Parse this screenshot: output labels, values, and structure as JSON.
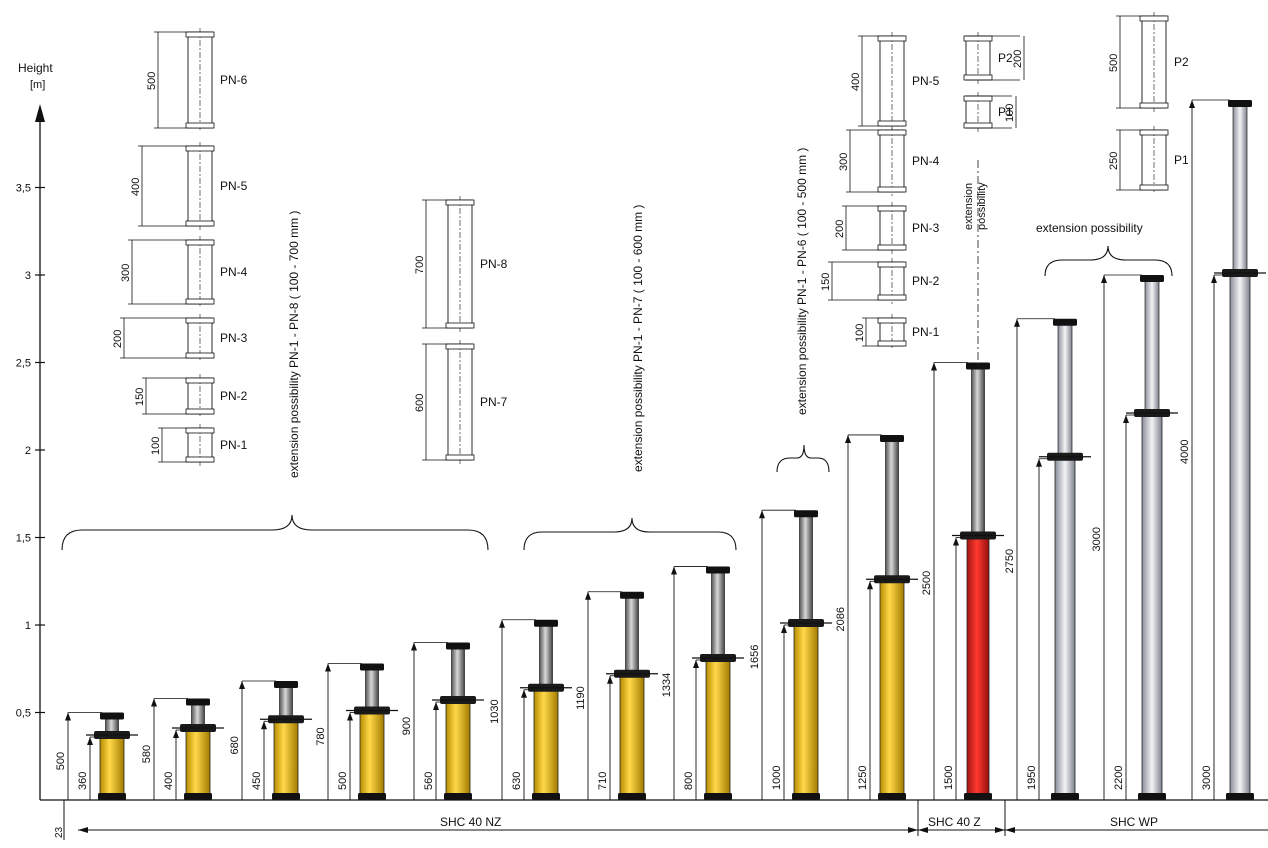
{
  "axis": {
    "title_line1": "Height",
    "title_line2": "[m]",
    "ticks": [
      {
        "value": 0.5,
        "label": "0,5"
      },
      {
        "value": 1,
        "label": "1"
      },
      {
        "value": 1.5,
        "label": "1,5"
      },
      {
        "value": 2,
        "label": "2"
      },
      {
        "value": 2.5,
        "label": "2,5"
      },
      {
        "value": 3,
        "label": "3"
      },
      {
        "value": 3.5,
        "label": "3,5"
      }
    ]
  },
  "ground_offset": "23",
  "props": [
    {
      "group": "nz",
      "base_mm": 360,
      "top_mm": 500,
      "top_label": "500",
      "base_label": "360",
      "color": "#f2c200"
    },
    {
      "group": "nz",
      "base_mm": 400,
      "top_mm": 580,
      "top_label": "580",
      "base_label": "400",
      "color": "#f2c200"
    },
    {
      "group": "nz",
      "base_mm": 450,
      "top_mm": 680,
      "top_label": "680",
      "base_label": "450",
      "color": "#f2c200"
    },
    {
      "group": "nz",
      "base_mm": 500,
      "top_mm": 780,
      "top_label": "780",
      "base_label": "500",
      "color": "#f2c200"
    },
    {
      "group": "nz",
      "base_mm": 560,
      "top_mm": 900,
      "top_label": "900",
      "base_label": "560",
      "color": "#f2c200"
    },
    {
      "group": "nz",
      "base_mm": 630,
      "top_mm": 1030,
      "top_label": "1030",
      "base_label": "630",
      "color": "#f2c200"
    },
    {
      "group": "nz",
      "base_mm": 710,
      "top_mm": 1190,
      "top_label": "1190",
      "base_label": "710",
      "color": "#f2c200"
    },
    {
      "group": "nz",
      "base_mm": 800,
      "top_mm": 1334,
      "top_label": "1334",
      "base_label": "800",
      "color": "#f2c200"
    },
    {
      "group": "nz",
      "base_mm": 1000,
      "top_mm": 1656,
      "top_label": "1656",
      "base_label": "1000",
      "color": "#f2c200"
    },
    {
      "group": "nz",
      "base_mm": 1250,
      "top_mm": 2086,
      "top_label": "2086",
      "base_label": "1250",
      "color": "#f2c200"
    },
    {
      "group": "z",
      "base_mm": 1500,
      "top_mm": 2500,
      "top_label": "2500",
      "base_label": "1500",
      "color": "#e0201b"
    },
    {
      "group": "wp",
      "base_mm": 1950,
      "top_mm": 2750,
      "top_label": "2750",
      "base_label": "1950",
      "color": "#c9cdd6"
    },
    {
      "group": "wp",
      "base_mm": 2200,
      "top_mm": 3000,
      "top_label": "3000",
      "base_label": "2200",
      "color": "#c9cdd6"
    },
    {
      "group": "wp",
      "base_mm": 3000,
      "top_mm": 4000,
      "top_label": "4000",
      "base_label": "3000",
      "color": "#c9cdd6"
    }
  ],
  "groups": {
    "nz_label": "SHC 40 NZ",
    "z_label": "SHC 40 Z",
    "wp_label": "SHC WP"
  },
  "ext_pn18": {
    "note": "extension possibility PN-1 - PN-8 ( 100 - 700 mm )",
    "pieces": [
      {
        "label": "PN-6",
        "dim": "500"
      },
      {
        "label": "PN-5",
        "dim": "400"
      },
      {
        "label": "PN-4",
        "dim": "300"
      },
      {
        "label": "PN-3",
        "dim": "200"
      },
      {
        "label": "PN-2",
        "dim": "150"
      },
      {
        "label": "PN-1",
        "dim": "100"
      }
    ]
  },
  "ext_pn78": {
    "pieces": [
      {
        "label": "PN-8",
        "dim": "700"
      },
      {
        "label": "PN-7",
        "dim": "600"
      }
    ]
  },
  "ext_pn17_note": "extension possibility PN-1 - PN-7 ( 100 - 600 mm )",
  "ext_pn16": {
    "note": "extension possibility PN-1 - PN-6 ( 100 - 500 mm )",
    "pieces": [
      {
        "label": "PN-5",
        "dim": "400"
      },
      {
        "label": "PN-4",
        "dim": "300"
      },
      {
        "label": "PN-3",
        "dim": "200"
      },
      {
        "label": "PN-2",
        "dim": "150"
      },
      {
        "label": "PN-1",
        "dim": "100"
      }
    ]
  },
  "ext_p12": {
    "pieces": [
      {
        "label": "P2",
        "dim": "200"
      },
      {
        "label": "P1",
        "dim": "100"
      }
    ],
    "vertical_note_line1": "extension",
    "vertical_note_line2": "possibility"
  },
  "ext_wp": {
    "note": "extension possibility",
    "pieces": [
      {
        "label": "P2",
        "dim": "500"
      },
      {
        "label": "P1",
        "dim": "250"
      }
    ]
  }
}
